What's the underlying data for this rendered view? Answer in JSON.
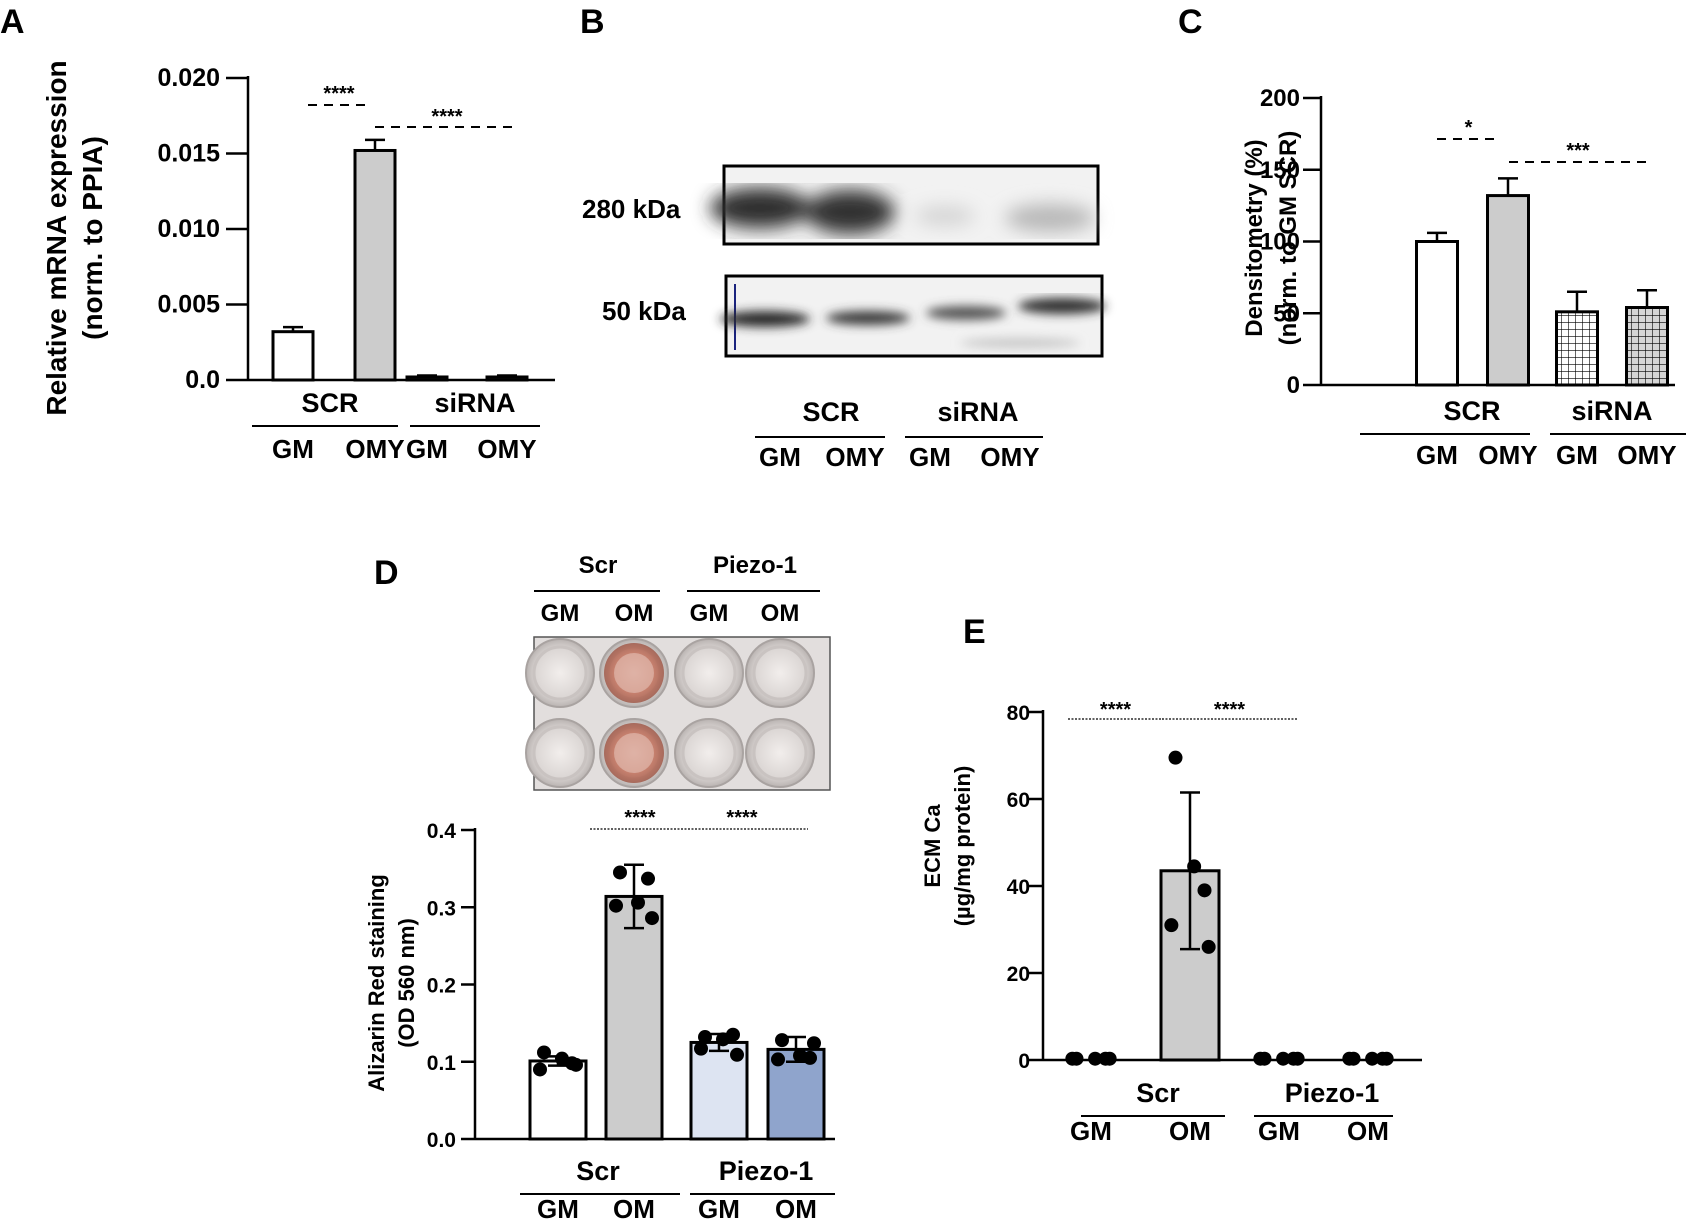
{
  "panels": {
    "A": {
      "letter": "A",
      "ylabel_line1": "Relative  mRNA expression",
      "ylabel_line2": "(norm. to PPIA)"
    },
    "B": {
      "letter": "B",
      "band_top": "280 kDa",
      "band_bottom": "50 kDa"
    },
    "C": {
      "letter": "C",
      "ylabel_line1": "Densitometry (%)",
      "ylabel_line2": "(norm. to  GM SCR)"
    },
    "D": {
      "letter": "D",
      "ylabel_line1": "Alizarin Red staining",
      "ylabel_line2": "(OD 560 nm)"
    },
    "E": {
      "letter": "E",
      "ylabel_line1": "ECM Ca",
      "ylabel_line2": "(µg/mg protein)"
    }
  },
  "chart_data": [
    {
      "panel": "A",
      "type": "bar",
      "categories": [
        "GM",
        "OMY",
        "GM",
        "OMY"
      ],
      "groups": [
        "SCR",
        "siRNA"
      ],
      "values": [
        0.0032,
        0.0152,
        0.0002,
        0.0002
      ],
      "errors": [
        0.0003,
        0.0007,
        0.0001,
        0.0001
      ],
      "fills": [
        "#ffffff",
        "#cccccc",
        "#cccccc",
        "#cccccc"
      ],
      "ylim": [
        0,
        0.02
      ],
      "yticks": [
        {
          "v": 0,
          "label": "0.0"
        },
        {
          "v": 0.005,
          "label": "0.005"
        },
        {
          "v": 0.01,
          "label": "0.010"
        },
        {
          "v": 0.015,
          "label": "0.015"
        },
        {
          "v": 0.02,
          "label": "0.020"
        }
      ],
      "significance": [
        {
          "from": 0,
          "to": 1,
          "label": "****"
        },
        {
          "from": 1,
          "to": 3,
          "label": "****"
        }
      ]
    },
    {
      "panel": "C",
      "type": "bar",
      "categories": [
        "GM",
        "OMY",
        "GM",
        "OMY"
      ],
      "groups": [
        "SCR",
        "siRNA"
      ],
      "values": [
        100,
        132,
        51,
        54
      ],
      "errors": [
        6,
        12,
        14,
        12
      ],
      "fills": [
        "#ffffff",
        "#cccccc",
        "grid",
        "grid-gray"
      ],
      "ylim": [
        0,
        200
      ],
      "yticks": [
        {
          "v": 0,
          "label": "0"
        },
        {
          "v": 50,
          "label": "50"
        },
        {
          "v": 100,
          "label": "100"
        },
        {
          "v": 150,
          "label": "150"
        },
        {
          "v": 200,
          "label": "200"
        }
      ],
      "significance": [
        {
          "from": 0,
          "to": 1,
          "label": "*"
        },
        {
          "from": 1,
          "to": 3,
          "label": "***"
        }
      ]
    },
    {
      "panel": "D",
      "type": "bar",
      "categories": [
        "GM",
        "OM",
        "GM",
        "OM"
      ],
      "groups": [
        "Scr",
        "Piezo-1"
      ],
      "values": [
        0.101,
        0.314,
        0.125,
        0.116
      ],
      "errors": [
        0.006,
        0.041,
        0.011,
        0.016
      ],
      "fills": [
        "#ffffff",
        "#cccccc",
        "#dde4f2",
        "#8fa4cc"
      ],
      "points": [
        [
          0.112,
          0.098,
          0.09,
          0.104,
          0.096
        ],
        [
          0.345,
          0.337,
          0.302,
          0.306,
          0.286
        ],
        [
          0.132,
          0.135,
          0.117,
          0.129,
          0.109
        ],
        [
          0.128,
          0.105,
          0.103,
          0.108,
          0.124
        ]
      ],
      "ylim": [
        0,
        0.4
      ],
      "yticks": [
        {
          "v": 0,
          "label": "0.0"
        },
        {
          "v": 0.1,
          "label": "0.1"
        },
        {
          "v": 0.2,
          "label": "0.2"
        },
        {
          "v": 0.3,
          "label": "0.3"
        },
        {
          "v": 0.4,
          "label": "0.4"
        }
      ],
      "significance": [
        {
          "from": 1,
          "to": 3,
          "label": "****  ****",
          "style": "dotted"
        }
      ]
    },
    {
      "panel": "E",
      "type": "bar",
      "categories": [
        "GM",
        "OM",
        "GM",
        "OM"
      ],
      "groups": [
        "Scr",
        "Piezo-1"
      ],
      "values": [
        0.3,
        43.5,
        0.3,
        0.3
      ],
      "errors": [
        0,
        18,
        0,
        0
      ],
      "fills": [
        "none",
        "#cccccc",
        "none",
        "none"
      ],
      "points": [
        [
          0.3,
          0.3,
          0.3,
          0.3,
          0.3
        ],
        [
          69.5,
          39,
          31,
          44.5,
          26
        ],
        [
          0.3,
          0.3,
          0.3,
          0.3,
          0.3
        ],
        [
          0.3,
          0.3,
          0.3,
          0.3,
          0.3
        ]
      ],
      "ylim": [
        0,
        80
      ],
      "yticks": [
        {
          "v": 0,
          "label": "0"
        },
        {
          "v": 20,
          "label": "20"
        },
        {
          "v": 40,
          "label": "40"
        },
        {
          "v": 60,
          "label": "60"
        },
        {
          "v": 80,
          "label": "80"
        }
      ],
      "significance": [
        {
          "from": 0,
          "to": 0,
          "label": "****",
          "style": "dotted"
        },
        {
          "from": 1,
          "to": 2,
          "label": "****",
          "style": "dotted"
        }
      ]
    }
  ],
  "plate": {
    "groups": [
      "Scr",
      "Piezo-1"
    ],
    "columns": [
      "GM",
      "OM",
      "GM",
      "OM"
    ]
  },
  "blot": {
    "groups": [
      "SCR",
      "siRNA"
    ],
    "columns": [
      "GM",
      "OMY",
      "GM",
      "OMY"
    ]
  },
  "colors": {
    "stain_red": "#c8745e",
    "plate_bg": "#e2dedd",
    "blot_bg": "#f2f2f2",
    "blot_band": "#2b2b2b"
  }
}
